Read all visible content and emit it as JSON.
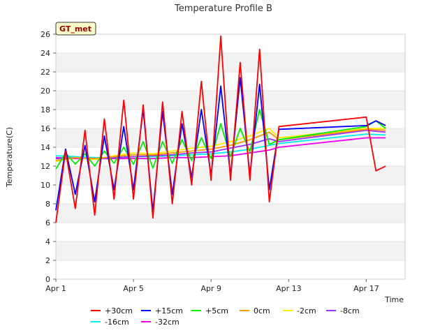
{
  "chart_data": {
    "type": "line",
    "title": "Temperature Profile B",
    "xlabel": "Time",
    "ylabel": "Temperature(C)",
    "ylim": [
      0,
      26
    ],
    "yticks": [
      0,
      2,
      4,
      6,
      8,
      10,
      12,
      14,
      16,
      18,
      20,
      22,
      24,
      26
    ],
    "xlim": [
      "Apr 1",
      "Apr 19"
    ],
    "xticks": [
      "Apr 1",
      "Apr 5",
      "Apr 9",
      "Apr 13",
      "Apr 17"
    ],
    "grid": "horizontal bands",
    "annotation": "GT_met",
    "legend_position": "bottom",
    "series": [
      {
        "name": "+30cm",
        "color": "#ff0000",
        "x": [
          "Apr 1",
          "Apr 1.5",
          "Apr 2",
          "Apr 2.5",
          "Apr 3",
          "Apr 3.5",
          "Apr 4",
          "Apr 4.5",
          "Apr 5",
          "Apr 5.5",
          "Apr 6",
          "Apr 6.5",
          "Apr 7",
          "Apr 7.5",
          "Apr 8",
          "Apr 8.5",
          "Apr 9",
          "Apr 9.5",
          "Apr 10",
          "Apr 10.5",
          "Apr 11",
          "Apr 11.5",
          "Apr 12",
          "Apr 12.5",
          "Apr 17",
          "Apr 17.5",
          "Apr 18"
        ],
        "y": [
          6.0,
          13.6,
          7.5,
          15.8,
          6.8,
          17.0,
          8.5,
          19.0,
          8.5,
          18.5,
          6.5,
          18.8,
          8.0,
          17.8,
          10.0,
          21.0,
          10.5,
          25.8,
          10.5,
          23.0,
          10.5,
          24.4,
          8.2,
          16.2,
          17.2,
          11.5,
          12.0
        ]
      },
      {
        "name": "+15cm",
        "color": "#0000ff",
        "x": [
          "Apr 1",
          "Apr 1.5",
          "Apr 2",
          "Apr 2.5",
          "Apr 3",
          "Apr 3.5",
          "Apr 4",
          "Apr 4.5",
          "Apr 5",
          "Apr 5.5",
          "Apr 6",
          "Apr 6.5",
          "Apr 7",
          "Apr 7.5",
          "Apr 8",
          "Apr 8.5",
          "Apr 9",
          "Apr 9.5",
          "Apr 10",
          "Apr 10.5",
          "Apr 11",
          "Apr 11.5",
          "Apr 12",
          "Apr 12.5",
          "Apr 17",
          "Apr 17.5",
          "Apr 18"
        ],
        "y": [
          7.3,
          13.8,
          9.0,
          14.2,
          8.2,
          15.2,
          9.5,
          16.2,
          9.5,
          18.0,
          7.2,
          17.8,
          9.0,
          16.5,
          10.8,
          18.0,
          11.0,
          20.5,
          11.0,
          21.4,
          11.0,
          20.7,
          9.5,
          15.9,
          16.3,
          16.8,
          16.3
        ]
      },
      {
        "name": "+5cm",
        "color": "#00ee00",
        "x": [
          "Apr 1",
          "Apr 1.5",
          "Apr 2",
          "Apr 2.5",
          "Apr 3",
          "Apr 3.5",
          "Apr 4",
          "Apr 4.5",
          "Apr 5",
          "Apr 5.5",
          "Apr 6",
          "Apr 6.5",
          "Apr 7",
          "Apr 7.5",
          "Apr 8",
          "Apr 8.5",
          "Apr 9",
          "Apr 9.5",
          "Apr 10",
          "Apr 10.5",
          "Apr 11",
          "Apr 11.5",
          "Apr 12",
          "Apr 12.5",
          "Apr 17",
          "Apr 17.5",
          "Apr 18"
        ],
        "y": [
          11.7,
          13.4,
          12.2,
          13.3,
          12.0,
          13.6,
          12.3,
          14.0,
          12.2,
          14.6,
          11.8,
          14.6,
          12.3,
          14.8,
          12.6,
          15.0,
          12.8,
          16.5,
          13.0,
          16.0,
          13.5,
          18.0,
          14.3,
          14.8,
          16.2,
          16.8,
          16.0
        ]
      },
      {
        "name": "0cm",
        "color": "#ff9900",
        "x": [
          "Apr 1",
          "Apr 2",
          "Apr 3",
          "Apr 4",
          "Apr 5",
          "Apr 6",
          "Apr 7",
          "Apr 8",
          "Apr 9",
          "Apr 10",
          "Apr 11",
          "Apr 12",
          "Apr 12.5",
          "Apr 17",
          "Apr 18"
        ],
        "y": [
          12.6,
          12.9,
          12.8,
          13.0,
          13.2,
          13.2,
          13.4,
          13.6,
          13.8,
          14.2,
          14.8,
          15.6,
          14.8,
          15.9,
          15.8
        ]
      },
      {
        "name": "-2cm",
        "color": "#ffee00",
        "x": [
          "Apr 1",
          "Apr 2",
          "Apr 3",
          "Apr 4",
          "Apr 5",
          "Apr 6",
          "Apr 7",
          "Apr 8",
          "Apr 9",
          "Apr 10",
          "Apr 11",
          "Apr 12",
          "Apr 12.5",
          "Apr 17",
          "Apr 18"
        ],
        "y": [
          12.5,
          12.9,
          12.7,
          13.1,
          13.4,
          13.3,
          13.6,
          13.9,
          14.1,
          14.6,
          15.2,
          16.0,
          15.0,
          16.0,
          16.0
        ]
      },
      {
        "name": "-8cm",
        "color": "#9933ff",
        "x": [
          "Apr 1",
          "Apr 2",
          "Apr 3",
          "Apr 4",
          "Apr 5",
          "Apr 6",
          "Apr 7",
          "Apr 8",
          "Apr 9",
          "Apr 10",
          "Apr 11",
          "Apr 12",
          "Apr 12.5",
          "Apr 17",
          "Apr 18"
        ],
        "y": [
          12.8,
          12.9,
          12.8,
          12.9,
          13.0,
          13.1,
          13.2,
          13.4,
          13.5,
          13.9,
          14.3,
          14.9,
          14.6,
          15.8,
          15.6
        ]
      },
      {
        "name": "-16cm",
        "color": "#00eeee",
        "x": [
          "Apr 1",
          "Apr 2",
          "Apr 3",
          "Apr 4",
          "Apr 5",
          "Apr 6",
          "Apr 7",
          "Apr 8",
          "Apr 9",
          "Apr 10",
          "Apr 11",
          "Apr 12",
          "Apr 12.5",
          "Apr 17",
          "Apr 18"
        ],
        "y": [
          13.1,
          13.0,
          12.9,
          12.9,
          13.0,
          13.0,
          13.1,
          13.2,
          13.3,
          13.5,
          13.8,
          14.2,
          14.4,
          15.4,
          15.3
        ]
      },
      {
        "name": "-32cm",
        "color": "#ee00ee",
        "x": [
          "Apr 1",
          "Apr 2",
          "Apr 3",
          "Apr 4",
          "Apr 5",
          "Apr 6",
          "Apr 7",
          "Apr 8",
          "Apr 9",
          "Apr 10",
          "Apr 11",
          "Apr 12",
          "Apr 12.5",
          "Apr 17",
          "Apr 18"
        ],
        "y": [
          12.9,
          12.8,
          12.8,
          12.8,
          12.8,
          12.8,
          12.9,
          12.9,
          13.0,
          13.1,
          13.4,
          13.7,
          14.0,
          15.0,
          15.0
        ]
      }
    ]
  }
}
